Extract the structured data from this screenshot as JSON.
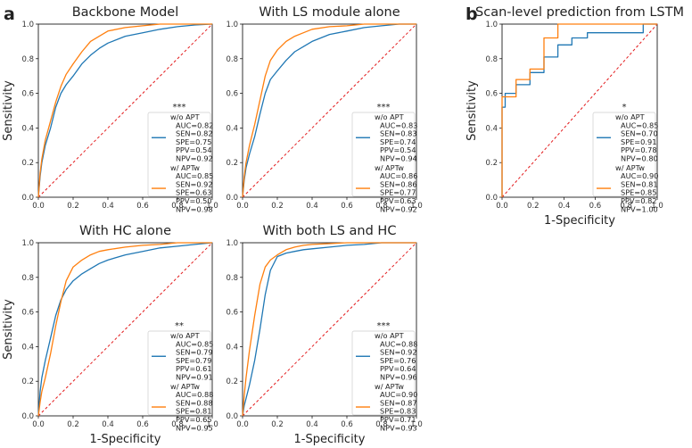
{
  "panel_letters": [
    "a",
    "b"
  ],
  "colors": {
    "blue": "#1f77b4",
    "orange": "#ff7f0e",
    "diagonal": "#e31a1c"
  },
  "chart_data": [
    {
      "type": "line",
      "panel": "a",
      "title": "Backbone Model",
      "xlabel": "",
      "ylabel": "Sensitivity",
      "xlim": [
        0,
        1
      ],
      "ylim": [
        0,
        1
      ],
      "xticks": [
        "0.0",
        "0.2",
        "0.4",
        "0.6",
        "0.8",
        "1.0"
      ],
      "yticks": [
        "0.0",
        "0.2",
        "0.4",
        "0.6",
        "0.8",
        "1.0"
      ],
      "significance": "***",
      "legend_position": "lower-right",
      "series": [
        {
          "name": "w/o APT",
          "color": "#1f77b4",
          "stats": [
            "AUC=0.82",
            "SEN=0.82",
            "SPE=0.75",
            "PPV=0.54",
            "NPV=0.92"
          ],
          "x": [
            0,
            0.01,
            0.02,
            0.04,
            0.07,
            0.1,
            0.13,
            0.16,
            0.2,
            0.25,
            0.3,
            0.35,
            0.4,
            0.5,
            0.6,
            0.7,
            0.8,
            0.9,
            1.0
          ],
          "y": [
            0,
            0.12,
            0.2,
            0.3,
            0.4,
            0.52,
            0.6,
            0.65,
            0.7,
            0.77,
            0.82,
            0.86,
            0.89,
            0.93,
            0.95,
            0.97,
            0.985,
            0.995,
            1.0
          ]
        },
        {
          "name": "w/ APTw",
          "color": "#ff7f0e",
          "stats": [
            "AUC=0.85",
            "SEN=0.92",
            "SPE=0.63",
            "PPV=0.50",
            "NPV=0.98"
          ],
          "x": [
            0,
            0.01,
            0.02,
            0.04,
            0.07,
            0.1,
            0.13,
            0.16,
            0.2,
            0.25,
            0.3,
            0.35,
            0.4,
            0.5,
            0.6,
            0.7,
            0.8,
            0.9,
            1.0
          ],
          "y": [
            0,
            0.14,
            0.22,
            0.33,
            0.44,
            0.55,
            0.64,
            0.71,
            0.77,
            0.84,
            0.9,
            0.93,
            0.96,
            0.98,
            0.99,
            1.0,
            1.0,
            1.0,
            1.0
          ]
        }
      ]
    },
    {
      "type": "line",
      "panel": "a",
      "title": "With LS module alone",
      "xlabel": "",
      "ylabel": "",
      "xlim": [
        0,
        1
      ],
      "ylim": [
        0,
        1
      ],
      "xticks": [
        "0.0",
        "0.2",
        "0.4",
        "0.6",
        "0.8",
        "1.0"
      ],
      "yticks": [
        "0.0",
        "0.2",
        "0.4",
        "0.6",
        "0.8",
        "1.0"
      ],
      "significance": "***",
      "legend_position": "lower-right",
      "series": [
        {
          "name": "w/o APT",
          "color": "#1f77b4",
          "stats": [
            "AUC=0.83",
            "SEN=0.83",
            "SPE=0.74",
            "PPV=0.54",
            "NPV=0.94"
          ],
          "x": [
            0,
            0.01,
            0.02,
            0.04,
            0.07,
            0.1,
            0.13,
            0.16,
            0.2,
            0.25,
            0.3,
            0.35,
            0.4,
            0.5,
            0.6,
            0.7,
            0.8,
            0.9,
            1.0
          ],
          "y": [
            0,
            0.1,
            0.17,
            0.25,
            0.35,
            0.48,
            0.6,
            0.68,
            0.73,
            0.79,
            0.84,
            0.87,
            0.9,
            0.94,
            0.96,
            0.98,
            0.99,
            1.0,
            1.0
          ]
        },
        {
          "name": "w/ APTw",
          "color": "#ff7f0e",
          "stats": [
            "AUC=0.86",
            "SEN=0.86",
            "SPE=0.77",
            "PPV=0.63",
            "NPV=0.92"
          ],
          "x": [
            0,
            0.01,
            0.02,
            0.04,
            0.07,
            0.1,
            0.13,
            0.16,
            0.2,
            0.25,
            0.3,
            0.35,
            0.4,
            0.5,
            0.6,
            0.7,
            0.8,
            0.9,
            1.0
          ],
          "y": [
            0,
            0.12,
            0.2,
            0.3,
            0.42,
            0.56,
            0.7,
            0.79,
            0.85,
            0.9,
            0.93,
            0.95,
            0.97,
            0.985,
            0.99,
            1.0,
            1.0,
            1.0,
            1.0
          ]
        }
      ]
    },
    {
      "type": "line",
      "panel": "a",
      "title": "With HC alone",
      "xlabel": "1-Specificity",
      "ylabel": "Sensitivity",
      "xlim": [
        0,
        1
      ],
      "ylim": [
        0,
        1
      ],
      "xticks": [
        "0.0",
        "0.2",
        "0.4",
        "0.6",
        "0.8",
        "1.0"
      ],
      "yticks": [
        "0.0",
        "0.2",
        "0.4",
        "0.6",
        "0.8",
        "1.0"
      ],
      "significance": "**",
      "legend_position": "lower-right",
      "series": [
        {
          "name": "w/o APT",
          "color": "#1f77b4",
          "stats": [
            "AUC=0.85",
            "SEN=0.79",
            "SPE=0.79",
            "PPV=0.61",
            "NPV=0.91"
          ],
          "x": [
            0,
            0.01,
            0.02,
            0.04,
            0.07,
            0.1,
            0.13,
            0.16,
            0.2,
            0.25,
            0.3,
            0.35,
            0.4,
            0.5,
            0.6,
            0.7,
            0.8,
            0.9,
            1.0
          ],
          "y": [
            0,
            0.14,
            0.22,
            0.32,
            0.45,
            0.58,
            0.67,
            0.73,
            0.78,
            0.82,
            0.85,
            0.88,
            0.9,
            0.93,
            0.95,
            0.97,
            0.98,
            0.99,
            1.0
          ]
        },
        {
          "name": "w/ APTw",
          "color": "#ff7f0e",
          "stats": [
            "AUC=0.88",
            "SEN=0.88",
            "SPE=0.81",
            "PPV=0.65",
            "NPV=0.95"
          ],
          "x": [
            0,
            0.01,
            0.02,
            0.04,
            0.07,
            0.1,
            0.13,
            0.16,
            0.2,
            0.25,
            0.3,
            0.35,
            0.4,
            0.5,
            0.6,
            0.7,
            0.8,
            0.9,
            1.0
          ],
          "y": [
            0,
            0.08,
            0.14,
            0.22,
            0.36,
            0.52,
            0.66,
            0.78,
            0.86,
            0.9,
            0.93,
            0.95,
            0.96,
            0.975,
            0.985,
            0.99,
            1.0,
            1.0,
            1.0
          ]
        }
      ]
    },
    {
      "type": "line",
      "panel": "a",
      "title": "With both LS and HC",
      "xlabel": "1-Specificity",
      "ylabel": "",
      "xlim": [
        0,
        1
      ],
      "ylim": [
        0,
        1
      ],
      "xticks": [
        "0.0",
        "0.2",
        "0.4",
        "0.6",
        "0.8",
        "1.0"
      ],
      "yticks": [
        "0.0",
        "0.2",
        "0.4",
        "0.6",
        "0.8",
        "1.0"
      ],
      "significance": "***",
      "legend_position": "lower-right",
      "series": [
        {
          "name": "w/o APT",
          "color": "#1f77b4",
          "stats": [
            "AUC=0.88",
            "SEN=0.92",
            "SPE=0.76",
            "PPV=0.64",
            "NPV=0.96"
          ],
          "x": [
            0,
            0.01,
            0.02,
            0.04,
            0.07,
            0.1,
            0.13,
            0.16,
            0.2,
            0.25,
            0.3,
            0.35,
            0.4,
            0.5,
            0.6,
            0.7,
            0.8,
            0.9,
            1.0
          ],
          "y": [
            0,
            0.06,
            0.1,
            0.18,
            0.32,
            0.5,
            0.7,
            0.84,
            0.92,
            0.94,
            0.95,
            0.96,
            0.965,
            0.975,
            0.985,
            0.99,
            1.0,
            1.0,
            1.0
          ]
        },
        {
          "name": "w/ APTw",
          "color": "#ff7f0e",
          "stats": [
            "AUC=0.90",
            "SEN=0.87",
            "SPE=0.83",
            "PPV=0.71",
            "NPV=0.93"
          ],
          "x": [
            0,
            0.01,
            0.02,
            0.04,
            0.07,
            0.1,
            0.13,
            0.16,
            0.2,
            0.25,
            0.3,
            0.35,
            0.4,
            0.5,
            0.6,
            0.7,
            0.8,
            0.9,
            1.0
          ],
          "y": [
            0,
            0.12,
            0.22,
            0.38,
            0.58,
            0.76,
            0.86,
            0.9,
            0.93,
            0.96,
            0.975,
            0.985,
            0.99,
            0.995,
            1.0,
            1.0,
            1.0,
            1.0,
            1.0
          ]
        }
      ]
    },
    {
      "type": "line",
      "panel": "b",
      "title": "Scan-level prediction from LSTM",
      "xlabel": "1-Specificity",
      "ylabel": "Sensitivity",
      "xlim": [
        0,
        1
      ],
      "ylim": [
        0,
        1
      ],
      "xticks": [
        "0.0",
        "0.2",
        "0.4",
        "0.6",
        "0.8",
        "1.0"
      ],
      "yticks": [
        "0.0",
        "0.2",
        "0.4",
        "0.6",
        "0.8",
        "1.0"
      ],
      "significance": "*",
      "legend_position": "lower-right",
      "series": [
        {
          "name": "w/o APT",
          "color": "#1f77b4",
          "stats": [
            "AUC=0.85",
            "SEN=0.70",
            "SPE=0.91",
            "PPV=0.78",
            "NPV=0.80"
          ],
          "x": [
            0,
            0,
            0.02,
            0.02,
            0.09,
            0.09,
            0.18,
            0.18,
            0.27,
            0.27,
            0.36,
            0.36,
            0.45,
            0.45,
            0.55,
            0.55,
            0.91,
            0.91,
            1.0
          ],
          "y": [
            0,
            0.52,
            0.52,
            0.6,
            0.6,
            0.65,
            0.65,
            0.72,
            0.72,
            0.81,
            0.81,
            0.88,
            0.88,
            0.92,
            0.92,
            0.95,
            0.95,
            1.0,
            1.0
          ]
        },
        {
          "name": "w/ APTw",
          "color": "#ff7f0e",
          "stats": [
            "AUC=0.90",
            "SEN=0.81",
            "SPE=0.85",
            "PPV=0.82",
            "NPV=1.00"
          ],
          "x": [
            0,
            0,
            0.09,
            0.09,
            0.18,
            0.18,
            0.27,
            0.27,
            0.36,
            0.36,
            1.0
          ],
          "y": [
            0,
            0.58,
            0.58,
            0.68,
            0.68,
            0.74,
            0.74,
            0.92,
            0.92,
            1.0,
            1.0
          ]
        }
      ]
    }
  ]
}
